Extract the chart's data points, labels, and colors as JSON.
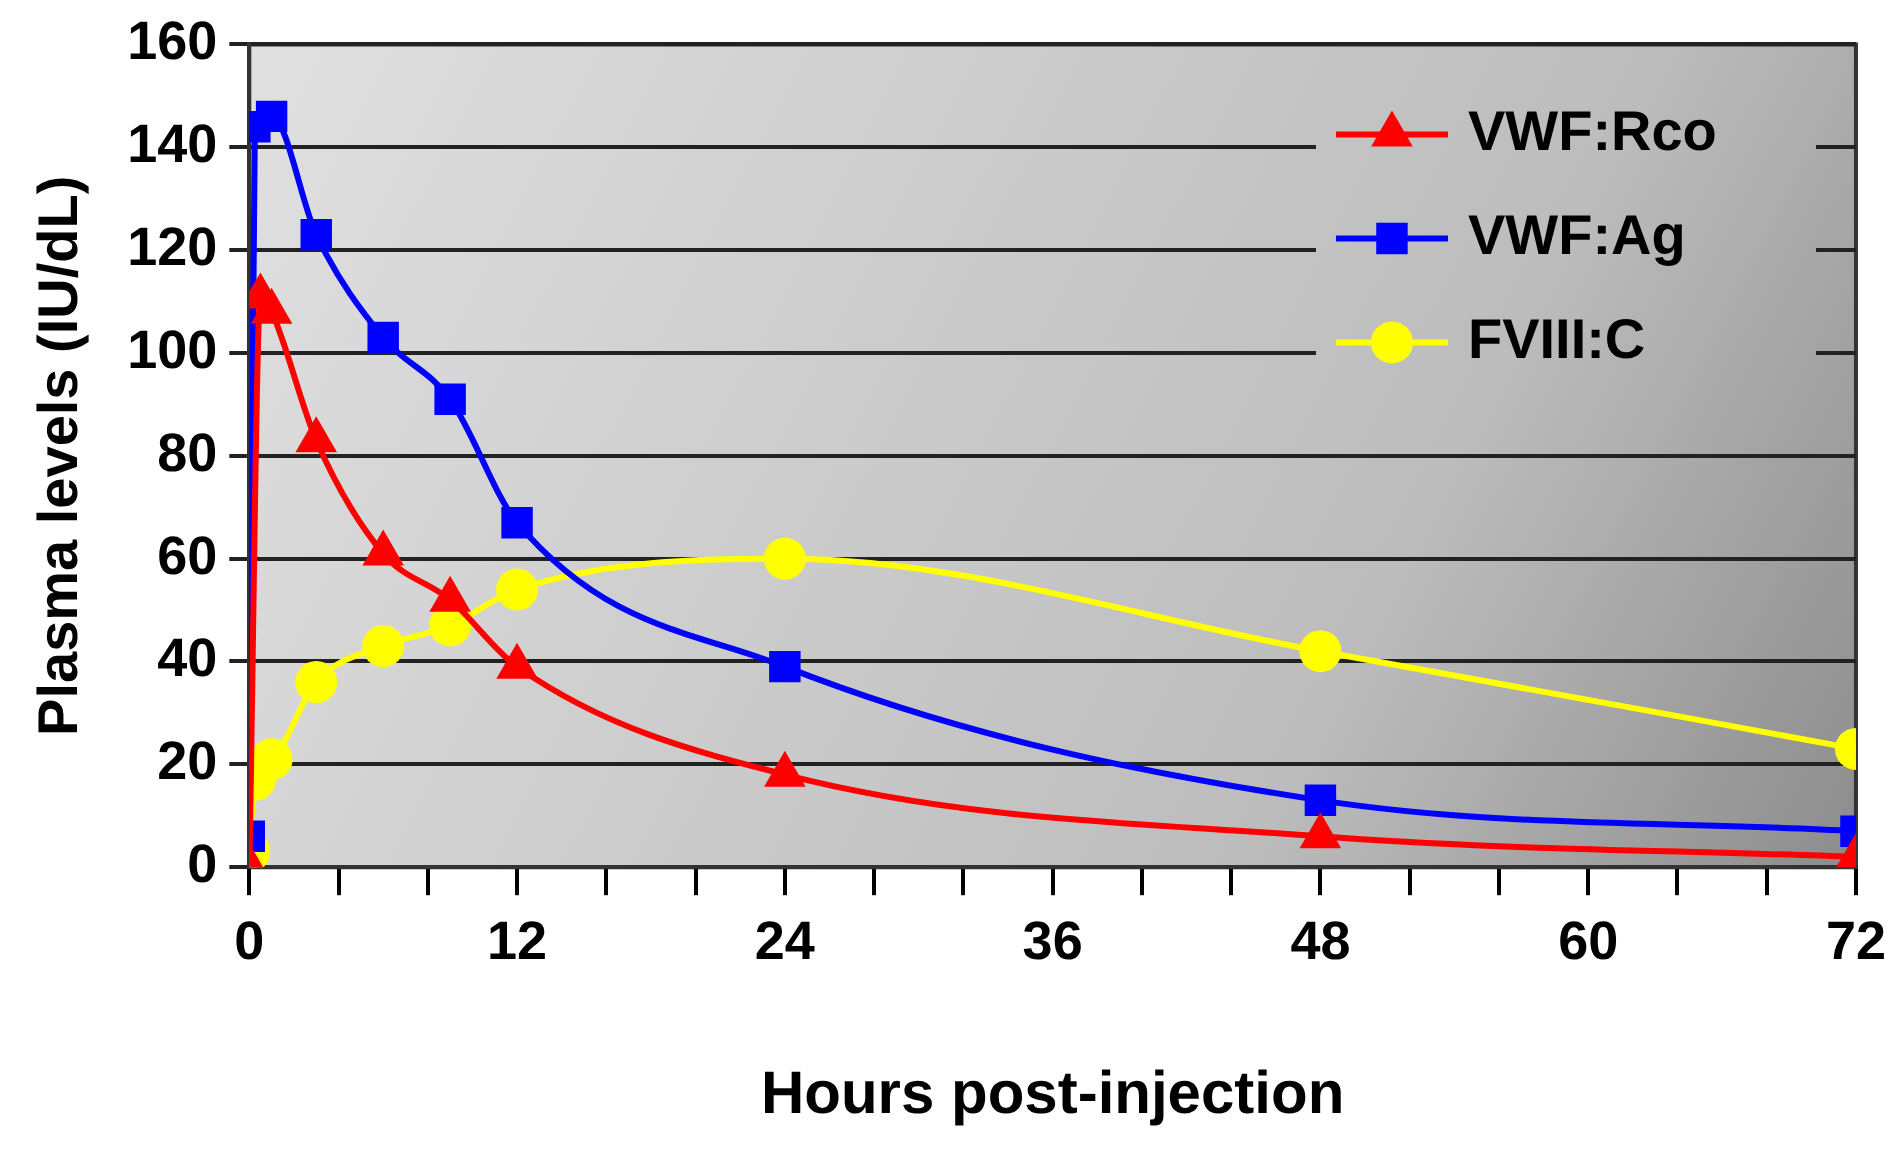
{
  "chart_data": {
    "type": "line",
    "xlabel": "Hours post-injection",
    "ylabel": "Plasma levels (IU/dL)",
    "xlim": [
      0,
      72
    ],
    "xticks": [
      0,
      {
        "value": 4,
        "label": null
      },
      {
        "value": 8,
        "label": null
      },
      12,
      {
        "value": 16,
        "label": null
      },
      {
        "value": 20,
        "label": null
      },
      24,
      {
        "value": 28,
        "label": null
      },
      {
        "value": 32,
        "label": null
      },
      36,
      {
        "value": 40,
        "label": null
      },
      {
        "value": 44,
        "label": null
      },
      48,
      {
        "value": 52,
        "label": null
      },
      {
        "value": 56,
        "label": null
      },
      60,
      {
        "value": 64,
        "label": null
      },
      {
        "value": 68,
        "label": null
      },
      72
    ],
    "ylim": [
      0,
      160
    ],
    "yticks": [
      0,
      20,
      40,
      60,
      80,
      100,
      120,
      140,
      160
    ],
    "grid": "y",
    "legend": "top right",
    "line_style": "solid",
    "series": [
      {
        "name": "VWF:Rco",
        "color": "#ff0000",
        "marker": "triangle",
        "x": [
          0,
          0.5,
          1,
          3,
          6,
          9,
          12,
          24,
          48,
          72
        ],
        "values": [
          0,
          111,
          108,
          83,
          61,
          52,
          39,
          18,
          6,
          2
        ]
      },
      {
        "name": "VWF:Ag",
        "color": "#0000ff",
        "marker": "square",
        "x": [
          0,
          0.25,
          1,
          3,
          6,
          9,
          12,
          24,
          48,
          72
        ],
        "values": [
          6,
          144,
          146,
          123,
          103,
          91,
          67,
          39,
          13,
          7
        ]
      },
      {
        "name": "FVIII:C",
        "color": "#ffff00",
        "marker": "circle",
        "x": [
          0,
          0.25,
          1,
          3,
          6,
          9,
          12,
          24,
          48,
          72
        ],
        "values": [
          3,
          17,
          21,
          36,
          43,
          47,
          54,
          60,
          42,
          23
        ]
      }
    ]
  }
}
